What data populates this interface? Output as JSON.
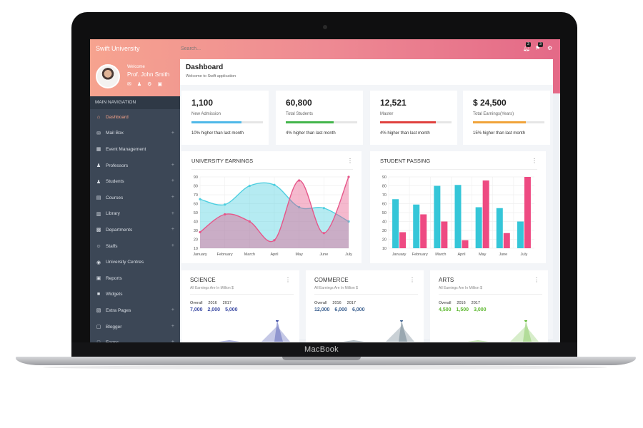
{
  "device": {
    "brand_label": "MacBook"
  },
  "app": {
    "name": "Swift University",
    "search_placeholder": "Search..."
  },
  "topbar": {
    "notif_count": "2",
    "flag_count": "3"
  },
  "profile": {
    "welcome": "Welcome",
    "name": "Prof. John Smith"
  },
  "nav": {
    "title": "MAIN NAVIGATION",
    "items": [
      {
        "label": "Dashboard",
        "icon": "home-icon",
        "expandable": false,
        "active": true
      },
      {
        "label": "Mail Box",
        "icon": "mail-icon",
        "expandable": true
      },
      {
        "label": "Event Management",
        "icon": "calendar-icon",
        "expandable": false
      },
      {
        "label": "Professors",
        "icon": "user-icon",
        "expandable": true
      },
      {
        "label": "Students",
        "icon": "users-icon",
        "expandable": true
      },
      {
        "label": "Courses",
        "icon": "book-icon",
        "expandable": true
      },
      {
        "label": "Library",
        "icon": "library-icon",
        "expandable": true
      },
      {
        "label": "Departments",
        "icon": "building-icon",
        "expandable": true
      },
      {
        "label": "Staffs",
        "icon": "staff-icon",
        "expandable": true
      },
      {
        "label": "University Centres",
        "icon": "location-icon",
        "expandable": false
      },
      {
        "label": "Reports",
        "icon": "report-icon",
        "expandable": false
      },
      {
        "label": "Widgets",
        "icon": "widgets-icon",
        "expandable": false
      },
      {
        "label": "Extra Pages",
        "icon": "pages-icon",
        "expandable": true
      },
      {
        "label": "Blogger",
        "icon": "blog-icon",
        "expandable": true
      },
      {
        "label": "Forms",
        "icon": "form-icon",
        "expandable": true
      }
    ]
  },
  "page": {
    "title": "Dashboard",
    "subtitle": "Welcome to Swift application"
  },
  "stats": [
    {
      "value": "1,100",
      "label": "New Admission",
      "note": "10% higher than last month",
      "progress": 0.7,
      "color": "#4fb8e8"
    },
    {
      "value": "60,800",
      "label": "Total Students",
      "note": "4% higher than last month",
      "progress": 0.67,
      "color": "#43b54b"
    },
    {
      "value": "12,521",
      "label": "Master",
      "note": "4% higher than last month",
      "progress": 0.78,
      "color": "#e0413e"
    },
    {
      "value": "$ 24,500",
      "label": "Total Earnings(Years)",
      "note": "15% higher than last month",
      "progress": 0.74,
      "color": "#f0a33a"
    }
  ],
  "earnings": {
    "title": "UNIVERSITY EARNINGS",
    "chart_data": {
      "type": "area",
      "categories": [
        "January",
        "February",
        "March",
        "April",
        "May",
        "June",
        "July"
      ],
      "series": [
        {
          "values": [
            65,
            59,
            80,
            81,
            56,
            55,
            40
          ],
          "color": "#4fcfe0"
        },
        {
          "values": [
            28,
            48,
            40,
            19,
            86,
            27,
            90
          ],
          "color": "#e6578a"
        }
      ],
      "ylim": [
        10,
        90
      ],
      "yticks": [
        10,
        20,
        30,
        40,
        50,
        60,
        70,
        80,
        90
      ]
    }
  },
  "passing": {
    "title": "STUDENT PASSING",
    "chart_data": {
      "type": "bar",
      "categories": [
        "January",
        "February",
        "March",
        "April",
        "May",
        "June",
        "July"
      ],
      "series": [
        {
          "values": [
            65,
            59,
            80,
            81,
            56,
            55,
            40
          ],
          "color": "#35c6d8"
        },
        {
          "values": [
            28,
            48,
            40,
            19,
            86,
            27,
            90
          ],
          "color": "#ee4a82"
        }
      ],
      "ylim": [
        10,
        90
      ],
      "yticks": [
        10,
        20,
        30,
        40,
        50,
        60,
        70,
        80,
        90
      ]
    }
  },
  "minis": [
    {
      "title": "SCIENCE",
      "sub": "All Earnings Are In Million $",
      "heads": [
        "Overall",
        "2016",
        "2017"
      ],
      "values": [
        "7,000",
        "2,000",
        "5,000"
      ],
      "value_color": "#3b4aa3",
      "chart_color": "#7e86c8"
    },
    {
      "title": "COMMERCE",
      "sub": "All Earnings Are In Million $",
      "heads": [
        "Overall",
        "2016",
        "2017"
      ],
      "values": [
        "12,000",
        "6,000",
        "6,000"
      ],
      "value_color": "#3a5f8f",
      "chart_color": "#8a9aa4"
    },
    {
      "title": "ARTS",
      "sub": "All Earnings Are In Million $",
      "heads": [
        "Overall",
        "2016",
        "2017"
      ],
      "values": [
        "4,500",
        "1,500",
        "3,000"
      ],
      "value_color": "#5cb82e",
      "chart_color": "#a6d68a"
    }
  ]
}
